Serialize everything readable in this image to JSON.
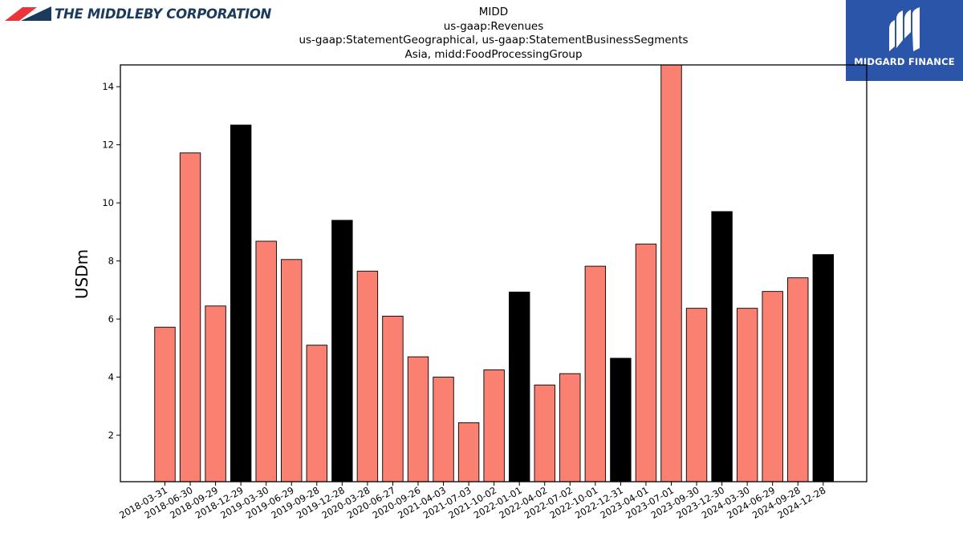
{
  "logo_left": {
    "name": "THE MIDDLEBY CORPORATION",
    "icon": "middleby-chevron-logo",
    "colors": [
      "#e8343a",
      "#1b3a5c"
    ]
  },
  "logo_right": {
    "name": "MIDGARD FINANCE",
    "icon": "midgard-m-logo",
    "color": "#2b55a9"
  },
  "chart_data": {
    "type": "bar",
    "title_lines": [
      "MIDD",
      "us-gaap:Revenues",
      "us-gaap:StatementGeographical, us-gaap:StatementBusinessSegments",
      "Asia, midd:FoodProcessingGroup"
    ],
    "ylabel": "USDm",
    "xlabel": "",
    "ylim": [
      0.4,
      14.75
    ],
    "yticks": [
      2,
      4,
      6,
      8,
      10,
      12,
      14
    ],
    "colors": {
      "quarter": "#fa8072",
      "year_end": "#000000"
    },
    "categories": [
      "2018-03-31",
      "2018-06-30",
      "2018-09-29",
      "2018-12-29",
      "2019-03-30",
      "2019-06-29",
      "2019-09-28",
      "2019-12-28",
      "2020-03-28",
      "2020-06-27",
      "2020-09-26",
      "2021-04-03",
      "2021-07-03",
      "2021-10-02",
      "2022-01-01",
      "2022-04-02",
      "2022-07-02",
      "2022-10-01",
      "2022-12-31",
      "2023-04-01",
      "2023-07-01",
      "2023-09-30",
      "2023-12-30",
      "2024-03-30",
      "2024-06-29",
      "2024-09-28",
      "2024-12-28"
    ],
    "values": [
      5.72,
      11.72,
      6.45,
      12.68,
      8.68,
      8.05,
      5.1,
      9.4,
      7.65,
      6.1,
      4.7,
      4.0,
      2.43,
      4.25,
      6.93,
      3.73,
      4.12,
      7.82,
      4.65,
      8.58,
      14.75,
      6.37,
      9.7,
      6.37,
      6.95,
      7.42,
      8.22
    ],
    "year_end": [
      false,
      false,
      false,
      true,
      false,
      false,
      false,
      true,
      false,
      false,
      false,
      false,
      false,
      false,
      true,
      false,
      false,
      false,
      true,
      false,
      false,
      false,
      true,
      false,
      false,
      false,
      true
    ]
  }
}
